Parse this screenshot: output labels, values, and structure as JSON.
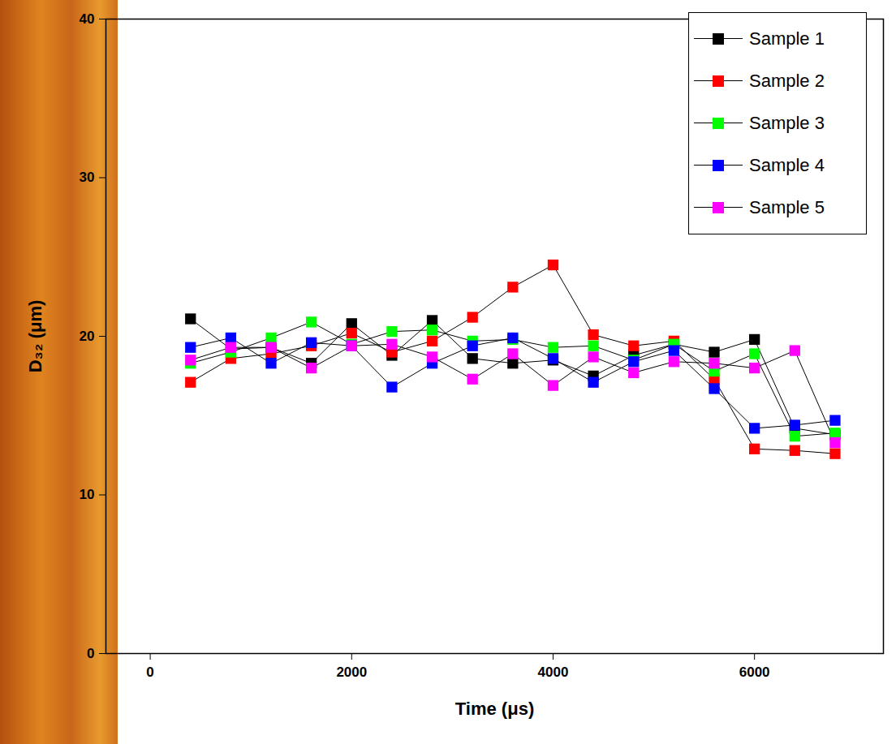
{
  "chart_data": {
    "type": "line",
    "x_label": "Time (μs)",
    "y_label": "D₃₂ (μm)",
    "xlim": [
      -440,
      7280
    ],
    "xticks": [
      0,
      2000,
      4000,
      6000
    ],
    "ylim": [
      0,
      40
    ],
    "yticks": [
      0,
      10,
      20,
      30,
      40
    ],
    "legend": "top-right",
    "marker": "square",
    "line_style": "solid",
    "x": [
      400,
      800,
      1200,
      1600,
      2000,
      2400,
      2800,
      3200,
      3600,
      4000,
      4400,
      4800,
      5200,
      5600,
      6000,
      6400,
      6800
    ],
    "series": [
      {
        "name": "Sample 1",
        "color": "#000000",
        "values": [
          21.1,
          19.2,
          19.3,
          18.3,
          20.8,
          18.8,
          21.0,
          18.6,
          18.3,
          18.5,
          17.5,
          18.8,
          19.5,
          19.0,
          19.8,
          14.2,
          13.8
        ]
      },
      {
        "name": "Sample 2",
        "color": "#ff0000",
        "values": [
          17.1,
          18.6,
          18.9,
          19.4,
          20.2,
          19.0,
          19.7,
          21.2,
          23.1,
          24.5,
          20.1,
          19.4,
          19.7,
          17.3,
          12.9,
          12.8,
          12.6
        ]
      },
      {
        "name": "Sample 3",
        "color": "#00ff00",
        "values": [
          18.3,
          19.0,
          19.9,
          20.9,
          19.5,
          20.3,
          20.4,
          19.7,
          19.8,
          19.3,
          19.4,
          18.5,
          19.5,
          17.8,
          18.9,
          13.7,
          13.9
        ]
      },
      {
        "name": "Sample 4",
        "color": "#0000ff",
        "values": [
          19.3,
          19.9,
          18.3,
          19.6,
          19.4,
          16.8,
          18.3,
          19.4,
          19.9,
          18.6,
          17.1,
          18.4,
          19.1,
          16.7,
          14.2,
          14.4,
          14.7
        ]
      },
      {
        "name": "Sample 5",
        "color": "#ff00ff",
        "values": [
          18.5,
          19.3,
          19.3,
          18.0,
          19.4,
          19.5,
          18.7,
          17.3,
          18.9,
          16.9,
          18.7,
          17.7,
          18.4,
          18.3,
          18.0,
          19.1,
          13.3
        ]
      }
    ]
  }
}
